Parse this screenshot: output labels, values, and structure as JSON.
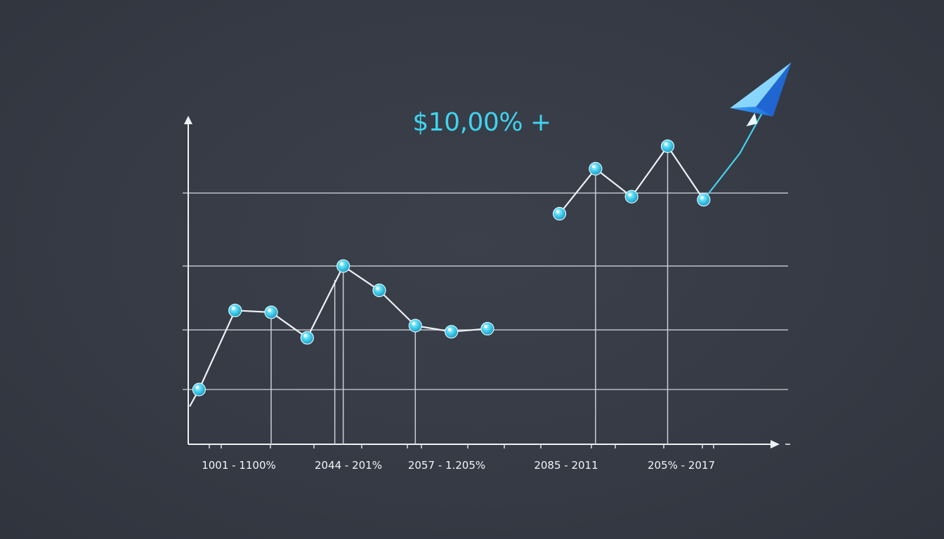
{
  "chart_data": {
    "type": "line",
    "title": "$10,00% +",
    "x_tick_labels": [
      "1001  -  1100%",
      "2044  -  201%",
      "2057  -  1.205%",
      "2085  -  2011",
      "205%  -  2017"
    ],
    "x": [
      0,
      1,
      2,
      3,
      4,
      5,
      6,
      7,
      8,
      9,
      10,
      11,
      12,
      13,
      14,
      15,
      16
    ],
    "series": [
      {
        "values": [
          0.0,
          1.3,
          1.27,
          0.85,
          2.03,
          1.63,
          1.05,
          0.95,
          1.0,
          null,
          2.89,
          3.63,
          3.17,
          4.0,
          3.12,
          null,
          null
        ]
      },
      {
        "values": [
          null,
          null,
          null,
          null,
          null,
          null,
          null,
          null,
          1.0,
          null,
          null,
          null,
          null,
          null,
          3.12,
          3.88,
          4.95
        ]
      }
    ],
    "gridlines_y": [
      0.0,
      0.98,
      2.03,
      3.23
    ],
    "xlim": [
      -0.3,
      16.4
    ],
    "ylim": [
      -0.9,
      4.5
    ],
    "grid": true,
    "arrow_end": true
  },
  "colors": {
    "background": "#363b45",
    "axis": "#eef1f5",
    "grid": "#c9ced6",
    "line_primary": "#eef1f5",
    "line_trend": "#44d2ee",
    "marker": "#3cc8ea",
    "headline": "#3fd3ef",
    "arrow_head": "#2f8ff0"
  },
  "icons": {
    "trend_arrow": "paper-plane-arrow-icon"
  }
}
